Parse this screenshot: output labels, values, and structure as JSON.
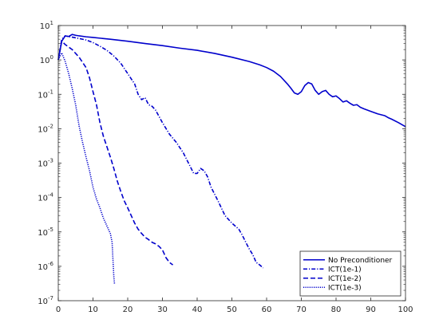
{
  "chart_data": {
    "type": "line",
    "title": "",
    "xlabel": "",
    "ylabel": "",
    "xlim": [
      0,
      100
    ],
    "ylim": [
      1e-07,
      10
    ],
    "yscale": "log",
    "grid": false,
    "legend_position": "bottom-right",
    "x_ticks": [
      0,
      10,
      20,
      30,
      40,
      50,
      60,
      70,
      80,
      90,
      100
    ],
    "y_ticks": [
      {
        "value": 1e-07,
        "base": "10",
        "exp": "-7"
      },
      {
        "value": 1e-06,
        "base": "10",
        "exp": "-6"
      },
      {
        "value": 1e-05,
        "base": "10",
        "exp": "-5"
      },
      {
        "value": 0.0001,
        "base": "10",
        "exp": "-4"
      },
      {
        "value": 0.001,
        "base": "10",
        "exp": "-3"
      },
      {
        "value": 0.01,
        "base": "10",
        "exp": "-2"
      },
      {
        "value": 0.1,
        "base": "10",
        "exp": "-1"
      },
      {
        "value": 1,
        "base": "10",
        "exp": "0"
      },
      {
        "value": 10,
        "base": "10",
        "exp": "1"
      }
    ],
    "color": "#0000cc",
    "series": [
      {
        "name": "No Preconditioner",
        "style": "solid",
        "points": [
          [
            0,
            1.0
          ],
          [
            1,
            3.5
          ],
          [
            2,
            5.0
          ],
          [
            3,
            4.8
          ],
          [
            4,
            5.5
          ],
          [
            5,
            5.2
          ],
          [
            6,
            5.0
          ],
          [
            8,
            4.7
          ],
          [
            10,
            4.5
          ],
          [
            15,
            4.0
          ],
          [
            20,
            3.5
          ],
          [
            25,
            3.0
          ],
          [
            30,
            2.6
          ],
          [
            35,
            2.2
          ],
          [
            40,
            1.9
          ],
          [
            45,
            1.55
          ],
          [
            50,
            1.2
          ],
          [
            55,
            0.9
          ],
          [
            58,
            0.72
          ],
          [
            60,
            0.6
          ],
          [
            62,
            0.47
          ],
          [
            64,
            0.33
          ],
          [
            66,
            0.2
          ],
          [
            67,
            0.15
          ],
          [
            68,
            0.11
          ],
          [
            69,
            0.1
          ],
          [
            70,
            0.12
          ],
          [
            71,
            0.18
          ],
          [
            72,
            0.22
          ],
          [
            73,
            0.2
          ],
          [
            74,
            0.13
          ],
          [
            75,
            0.1
          ],
          [
            76,
            0.12
          ],
          [
            77,
            0.13
          ],
          [
            78,
            0.1
          ],
          [
            79,
            0.085
          ],
          [
            80,
            0.09
          ],
          [
            81,
            0.075
          ],
          [
            82,
            0.06
          ],
          [
            83,
            0.065
          ],
          [
            84,
            0.055
          ],
          [
            85,
            0.048
          ],
          [
            86,
            0.05
          ],
          [
            87,
            0.042
          ],
          [
            88,
            0.038
          ],
          [
            90,
            0.032
          ],
          [
            92,
            0.027
          ],
          [
            94,
            0.024
          ],
          [
            95,
            0.021
          ],
          [
            96,
            0.019
          ],
          [
            98,
            0.015
          ],
          [
            100,
            0.0115
          ]
        ]
      },
      {
        "name": "ICT(1e-1)",
        "style": "dashdot",
        "points": [
          [
            0,
            1.0
          ],
          [
            1,
            4.0
          ],
          [
            2,
            5.0
          ],
          [
            4,
            4.6
          ],
          [
            6,
            4.2
          ],
          [
            8,
            3.8
          ],
          [
            10,
            3.2
          ],
          [
            12,
            2.5
          ],
          [
            14,
            1.9
          ],
          [
            16,
            1.3
          ],
          [
            18,
            0.8
          ],
          [
            20,
            0.4
          ],
          [
            22,
            0.2
          ],
          [
            23,
            0.1
          ],
          [
            24,
            0.07
          ],
          [
            25,
            0.08
          ],
          [
            26,
            0.05
          ],
          [
            27,
            0.045
          ],
          [
            28,
            0.035
          ],
          [
            30,
            0.015
          ],
          [
            32,
            0.007
          ],
          [
            34,
            0.004
          ],
          [
            36,
            0.002
          ],
          [
            38,
            0.0008
          ],
          [
            39,
            0.0005
          ],
          [
            40,
            0.0005
          ],
          [
            41,
            0.0007
          ],
          [
            42,
            0.0006
          ],
          [
            43,
            0.0004
          ],
          [
            44,
            0.0002
          ],
          [
            46,
            8e-05
          ],
          [
            48,
            3e-05
          ],
          [
            50,
            1.8e-05
          ],
          [
            52,
            1.2e-05
          ],
          [
            53,
            8e-06
          ],
          [
            54,
            5e-06
          ],
          [
            55,
            3.2e-06
          ],
          [
            56,
            2.2e-06
          ],
          [
            57,
            1.3e-06
          ],
          [
            58,
            1.1e-06
          ],
          [
            59,
            9e-07
          ]
        ]
      },
      {
        "name": "ICT(1e-2)",
        "style": "dashed",
        "points": [
          [
            0,
            1.0
          ],
          [
            1,
            3.5
          ],
          [
            2,
            2.8
          ],
          [
            4,
            2.0
          ],
          [
            6,
            1.2
          ],
          [
            8,
            0.6
          ],
          [
            9,
            0.3
          ],
          [
            10,
            0.12
          ],
          [
            11,
            0.05
          ],
          [
            12,
            0.015
          ],
          [
            13,
            0.006
          ],
          [
            14,
            0.003
          ],
          [
            15,
            0.0015
          ],
          [
            16,
            0.0007
          ],
          [
            17,
            0.0003
          ],
          [
            18,
            0.00015
          ],
          [
            19,
            8e-05
          ],
          [
            20,
            5e-05
          ],
          [
            21,
            3e-05
          ],
          [
            22,
            1.8e-05
          ],
          [
            23,
            1.2e-05
          ],
          [
            24,
            9e-06
          ],
          [
            25,
            7e-06
          ],
          [
            26,
            6e-06
          ],
          [
            27,
            5e-06
          ],
          [
            28,
            4.5e-06
          ],
          [
            29,
            3.8e-06
          ],
          [
            30,
            3e-06
          ],
          [
            31,
            1.8e-06
          ],
          [
            32,
            1.3e-06
          ],
          [
            33,
            1.1e-06
          ]
        ]
      },
      {
        "name": "ICT(1e-3)",
        "style": "dotted",
        "points": [
          [
            0,
            1.0
          ],
          [
            1,
            1.6
          ],
          [
            2,
            0.9
          ],
          [
            3,
            0.4
          ],
          [
            4,
            0.15
          ],
          [
            5,
            0.05
          ],
          [
            6,
            0.012
          ],
          [
            7,
            0.004
          ],
          [
            8,
            0.0015
          ],
          [
            9,
            0.0006
          ],
          [
            10,
            0.0002
          ],
          [
            11,
            9e-05
          ],
          [
            12,
            5e-05
          ],
          [
            13,
            2.5e-05
          ],
          [
            14,
            1.5e-05
          ],
          [
            15,
            9e-06
          ],
          [
            15.5,
            5e-06
          ],
          [
            16,
            5e-07
          ],
          [
            16.2,
            3e-07
          ]
        ]
      }
    ]
  }
}
